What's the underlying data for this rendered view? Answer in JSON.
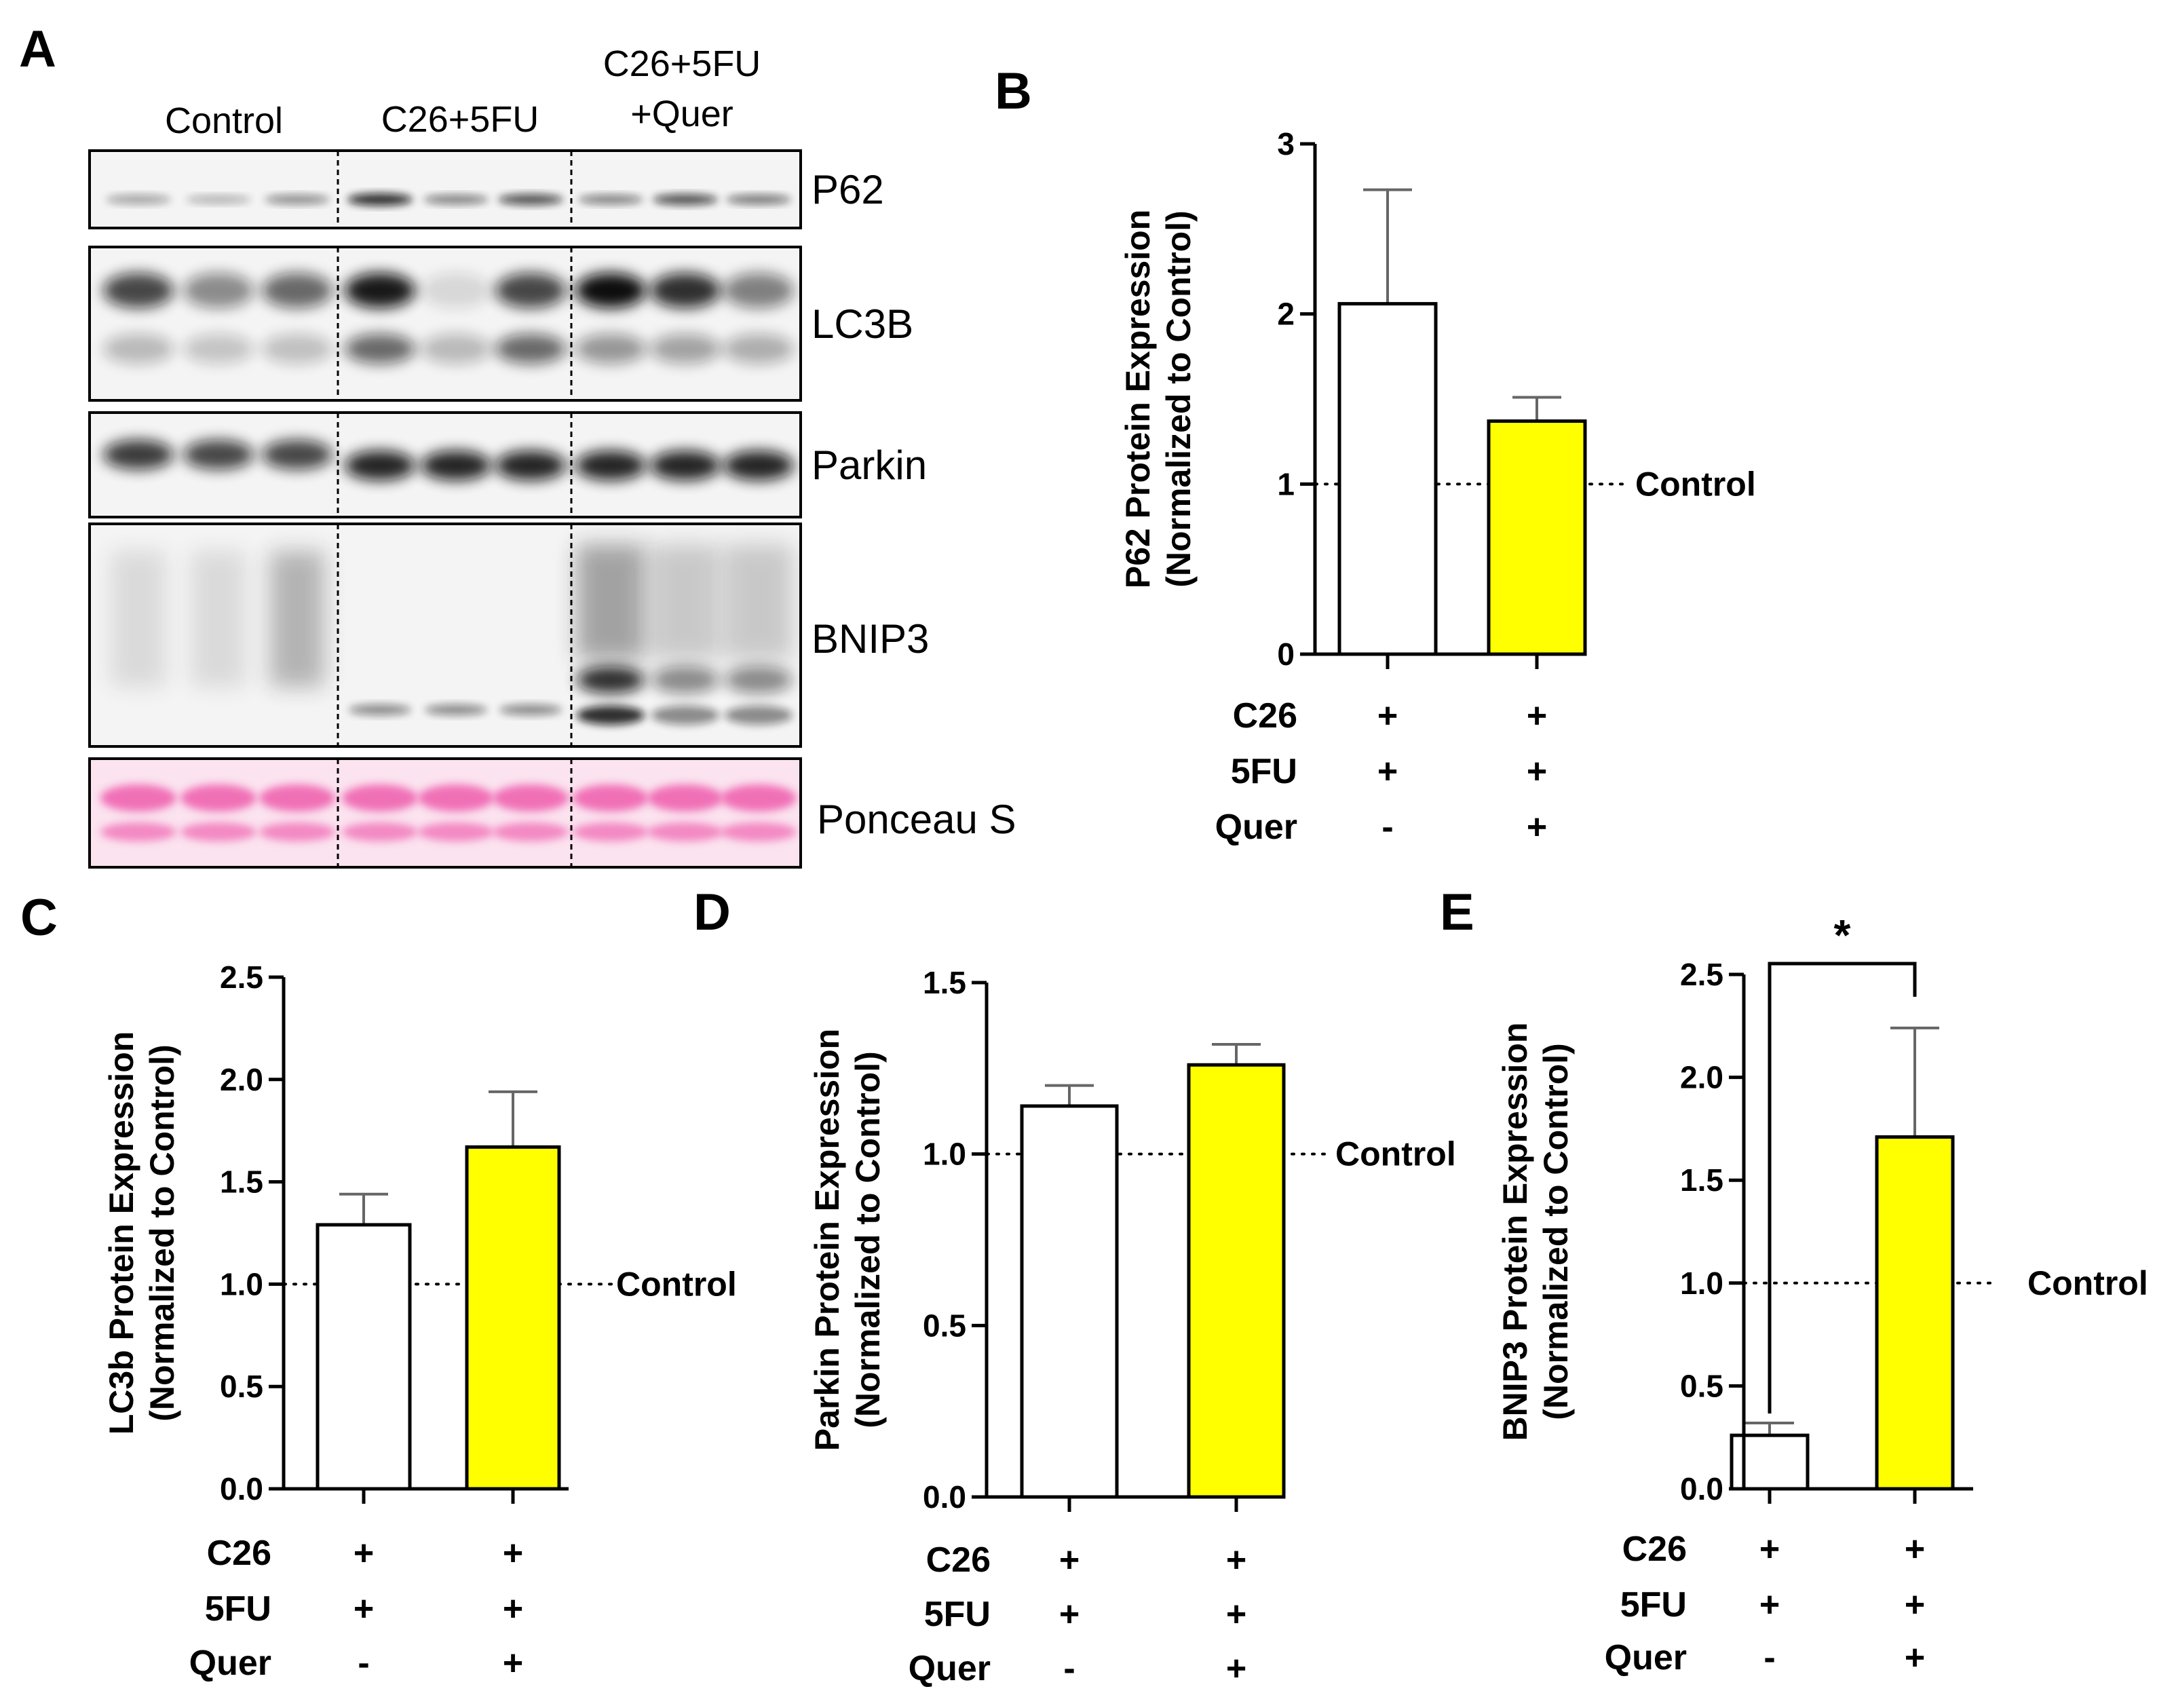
{
  "panels": {
    "A": "A",
    "B": "B",
    "C": "C",
    "D": "D",
    "E": "E"
  },
  "blot": {
    "groups": [
      "Control",
      "C26+5FU",
      "C26+5FU",
      "+Quer"
    ],
    "proteins": [
      "P62",
      "LC3B",
      "Parkin",
      "BNIP3",
      "Ponceau S"
    ],
    "ponceau_color": "#f06ab4"
  },
  "chart_data": [
    {
      "panel": "B",
      "type": "bar",
      "categories": [
        "C26+5FU",
        "C26+5FU+Quer"
      ],
      "values": [
        2.06,
        1.37
      ],
      "errors": [
        0.67,
        0.14
      ],
      "colors": [
        "#ffffff",
        "#ffff00"
      ],
      "ylabel": [
        "P62 Protein Expression",
        "(Normalized to Control)"
      ],
      "yticks": [
        "0",
        "1",
        "2",
        "3"
      ],
      "ylim": [
        0,
        3
      ],
      "reference": {
        "value": 1,
        "label": "Control"
      },
      "conditions": [
        {
          "name": "C26",
          "signs": [
            "+",
            "+"
          ]
        },
        {
          "name": "5FU",
          "signs": [
            "+",
            "+"
          ]
        },
        {
          "name": "Quer",
          "signs": [
            "-",
            "+"
          ]
        }
      ]
    },
    {
      "panel": "C",
      "type": "bar",
      "categories": [
        "C26+5FU",
        "C26+5FU+Quer"
      ],
      "values": [
        1.29,
        1.67
      ],
      "errors": [
        0.15,
        0.27
      ],
      "colors": [
        "#ffffff",
        "#ffff00"
      ],
      "ylabel": [
        "LC3b Protein Expression",
        "(Normalized to Control)"
      ],
      "yticks": [
        "0.0",
        "0.5",
        "1.0",
        "1.5",
        "2.0",
        "2.5"
      ],
      "ylim": [
        0,
        2.5
      ],
      "reference": {
        "value": 1,
        "label": "Control"
      },
      "conditions": [
        {
          "name": "C26",
          "signs": [
            "+",
            "+"
          ]
        },
        {
          "name": "5FU",
          "signs": [
            "+",
            "+"
          ]
        },
        {
          "name": "Quer",
          "signs": [
            "-",
            "+"
          ]
        }
      ]
    },
    {
      "panel": "D",
      "type": "bar",
      "categories": [
        "C26+5FU",
        "C26+5FU+Quer"
      ],
      "values": [
        1.14,
        1.26
      ],
      "errors": [
        0.06,
        0.06
      ],
      "colors": [
        "#ffffff",
        "#ffff00"
      ],
      "ylabel": [
        "Parkin Protein Expression",
        "(Normalized to Control)"
      ],
      "yticks": [
        "0.0",
        "0.5",
        "1.0",
        "1.5"
      ],
      "ylim": [
        0,
        1.5
      ],
      "reference": {
        "value": 1,
        "label": "Control"
      },
      "conditions": [
        {
          "name": "C26",
          "signs": [
            "+",
            "+"
          ]
        },
        {
          "name": "5FU",
          "signs": [
            "+",
            "+"
          ]
        },
        {
          "name": "Quer",
          "signs": [
            "-",
            "+"
          ]
        }
      ]
    },
    {
      "panel": "E",
      "type": "bar",
      "categories": [
        "C26+5FU",
        "C26+5FU+Quer"
      ],
      "values": [
        0.26,
        1.71
      ],
      "errors": [
        0.06,
        0.53
      ],
      "colors": [
        "#ffffff",
        "#ffff00"
      ],
      "ylabel": [
        "BNIP3 Protein Expression",
        "(Normalized to Control)"
      ],
      "yticks": [
        "0.0",
        "0.5",
        "1.0",
        "1.5",
        "2.0",
        "2.5"
      ],
      "ylim": [
        0,
        2.5
      ],
      "reference": {
        "value": 1,
        "label": "Control"
      },
      "significance": {
        "label": "*"
      },
      "conditions": [
        {
          "name": "C26",
          "signs": [
            "+",
            "+"
          ]
        },
        {
          "name": "5FU",
          "signs": [
            "+",
            "+"
          ]
        },
        {
          "name": "Quer",
          "signs": [
            "-",
            "+"
          ]
        }
      ]
    }
  ]
}
